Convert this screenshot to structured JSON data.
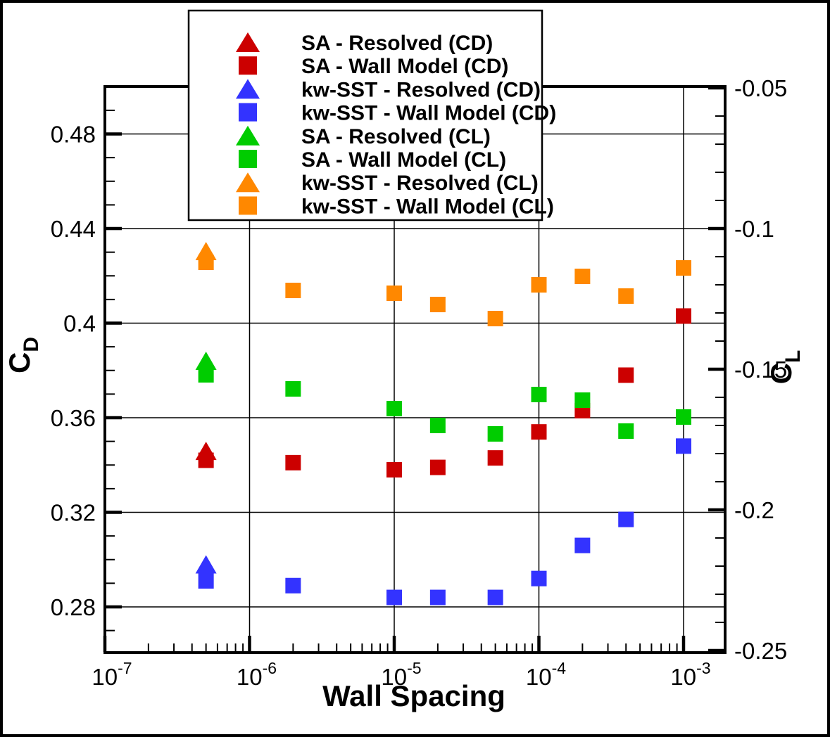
{
  "figure": {
    "background": "#ffffff",
    "border_color": "#000000"
  },
  "chart_data": {
    "type": "scatter",
    "title": "",
    "xlabel": "Wall Spacing",
    "x_scale": "log",
    "x_axis": {
      "major_tick_exponents": [
        -7,
        -6,
        -5,
        -4,
        -3
      ],
      "major_tick_labels": [
        "10-7",
        "10-6",
        "10-5",
        "10-4",
        "10-3"
      ],
      "minor_tick_multipliers": [
        2,
        3,
        4,
        5,
        6,
        7,
        8,
        9
      ],
      "grid_on_decades": [
        -6,
        -5,
        -4,
        -3
      ]
    },
    "y_left_axis": {
      "label": "C",
      "label_subscript": "D",
      "major_ticks": [
        {
          "value": 0.28,
          "label": "0.28"
        },
        {
          "value": 0.32,
          "label": "0.32"
        },
        {
          "value": 0.36,
          "label": "0.36"
        },
        {
          "value": 0.4,
          "label": "0.4"
        },
        {
          "value": 0.44,
          "label": "0.44"
        },
        {
          "value": 0.48,
          "label": "0.48"
        }
      ],
      "minor_step": 0.01,
      "minor_range": [
        0.27,
        0.49
      ],
      "grid": true
    },
    "y_right_axis": {
      "label": "C",
      "label_subscript": "L",
      "major_ticks": [
        {
          "value": -0.05,
          "label": "-0.05"
        },
        {
          "value": -0.1,
          "label": "-0.1"
        },
        {
          "value": -0.15,
          "label": "-0.15"
        },
        {
          "value": -0.2,
          "label": "-0.2"
        },
        {
          "value": -0.25,
          "label": "-0.25"
        }
      ],
      "minor_step": 0.01,
      "minor_range": [
        -0.24,
        -0.06
      ],
      "grid": false
    },
    "series": [
      {
        "name": "SA - Resolved (CD)",
        "color": "#cc0000",
        "marker": "triangle",
        "y_axis": "left",
        "points": [
          [
            5e-07,
            0.346
          ]
        ]
      },
      {
        "name": "SA - Wall Model (CD)",
        "color": "#cc0000",
        "marker": "square",
        "y_axis": "left",
        "points": [
          [
            5e-07,
            0.342
          ],
          [
            2e-06,
            0.341
          ],
          [
            1e-05,
            0.338
          ],
          [
            2e-05,
            0.339
          ],
          [
            5e-05,
            0.343
          ],
          [
            0.0001,
            0.354
          ],
          [
            0.0002,
            0.363
          ],
          [
            0.0004,
            0.378
          ],
          [
            0.001,
            0.403
          ]
        ]
      },
      {
        "name": "kw-SST - Resolved (CD)",
        "color": "#3333ff",
        "marker": "triangle",
        "y_axis": "left",
        "points": [
          [
            5e-07,
            0.298
          ]
        ]
      },
      {
        "name": "kw-SST - Wall Model (CD)",
        "color": "#3333ff",
        "marker": "square",
        "y_axis": "left",
        "points": [
          [
            5e-07,
            0.291
          ],
          [
            2e-06,
            0.289
          ],
          [
            1e-05,
            0.284
          ],
          [
            2e-05,
            0.284
          ],
          [
            5e-05,
            0.284
          ],
          [
            0.0001,
            0.292
          ],
          [
            0.0002,
            0.306
          ],
          [
            0.0004,
            0.317
          ],
          [
            0.001,
            0.348
          ]
        ]
      },
      {
        "name": "SA - Resolved (CL)",
        "color": "#00cc00",
        "marker": "triangle",
        "y_axis": "right",
        "points": [
          [
            5e-07,
            -0.147
          ]
        ]
      },
      {
        "name": "SA - Wall Model (CL)",
        "color": "#00cc00",
        "marker": "square",
        "y_axis": "right",
        "points": [
          [
            5e-07,
            -0.152
          ],
          [
            2e-06,
            -0.157
          ],
          [
            1e-05,
            -0.164
          ],
          [
            2e-05,
            -0.17
          ],
          [
            5e-05,
            -0.173
          ],
          [
            0.0001,
            -0.159
          ],
          [
            0.0002,
            -0.161
          ],
          [
            0.0004,
            -0.172
          ],
          [
            0.001,
            -0.167
          ]
        ]
      },
      {
        "name": "kw-SST - Resolved (CL)",
        "color": "#ff8800",
        "marker": "triangle",
        "y_axis": "right",
        "points": [
          [
            5e-07,
            -0.108
          ]
        ]
      },
      {
        "name": "kw-SST - Wall Model (CL)",
        "color": "#ff8800",
        "marker": "square",
        "y_axis": "right",
        "points": [
          [
            5e-07,
            -0.112
          ],
          [
            2e-06,
            -0.122
          ],
          [
            1e-05,
            -0.123
          ],
          [
            2e-05,
            -0.127
          ],
          [
            5e-05,
            -0.132
          ],
          [
            0.0001,
            -0.12
          ],
          [
            0.0002,
            -0.117
          ],
          [
            0.0004,
            -0.124
          ],
          [
            0.001,
            -0.114
          ]
        ]
      }
    ],
    "legend": {
      "position": "top-center-inside",
      "items": [
        "SA - Resolved (CD)",
        "SA - Wall Model (CD)",
        "kw-SST - Resolved (CD)",
        "kw-SST - Wall Model (CD)",
        "SA - Resolved (CL)",
        "SA - Wall Model (CL)",
        "kw-SST - Resolved (CL)",
        "kw-SST - Wall Model (CL)"
      ]
    }
  }
}
